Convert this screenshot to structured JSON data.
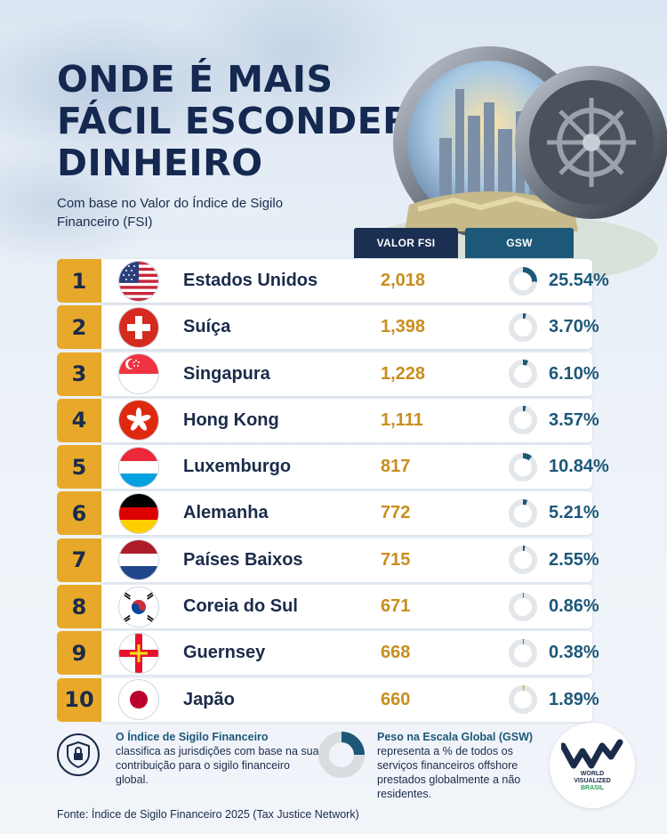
{
  "title": "ONDE É MAIS FÁCIL ESCONDER DINHEIRO",
  "subtitle": "Com base no Valor do Índice de Sigilo Financeiro (FSI)",
  "columns": {
    "fsi": "VALOR FSI",
    "gsw": "GSW"
  },
  "rows": [
    {
      "rank": "1",
      "country": "Estados Unidos",
      "flag": "us-flag",
      "fsi": "2,018",
      "gsw": "25.54%",
      "gsw_fraction": 0.2554
    },
    {
      "rank": "2",
      "country": "Suíça",
      "flag": "switzerland-flag",
      "fsi": "1,398",
      "gsw": "3.70%",
      "gsw_fraction": 0.037
    },
    {
      "rank": "3",
      "country": "Singapura",
      "flag": "singapore-flag",
      "fsi": "1,228",
      "gsw": "6.10%",
      "gsw_fraction": 0.061
    },
    {
      "rank": "4",
      "country": "Hong Kong",
      "flag": "hong-kong-flag",
      "fsi": "1,111",
      "gsw": "3.57%",
      "gsw_fraction": 0.0357
    },
    {
      "rank": "5",
      "country": "Luxemburgo",
      "flag": "luxembourg-flag",
      "fsi": "817",
      "gsw": "10.84%",
      "gsw_fraction": 0.1084
    },
    {
      "rank": "6",
      "country": "Alemanha",
      "flag": "germany-flag",
      "fsi": "772",
      "gsw": "5.21%",
      "gsw_fraction": 0.0521
    },
    {
      "rank": "7",
      "country": "Países Baixos",
      "flag": "netherlands-flag",
      "fsi": "715",
      "gsw": "2.55%",
      "gsw_fraction": 0.0255
    },
    {
      "rank": "8",
      "country": "Coreia do Sul",
      "flag": "south-korea-flag",
      "fsi": "671",
      "gsw": "0.86%",
      "gsw_fraction": 0.0086
    },
    {
      "rank": "9",
      "country": "Guernsey",
      "flag": "guernsey-flag",
      "fsi": "668",
      "gsw": "0.38%",
      "gsw_fraction": 0.0038
    },
    {
      "rank": "10",
      "country": "Japão",
      "flag": "japan-flag",
      "fsi": "660",
      "gsw": "1.89%",
      "gsw_fraction": 0.0189
    }
  ],
  "footer": {
    "fsi_title": "O Índice de Sigilo Financeiro",
    "fsi_text": "classifica as jurisdições com base na sua contribuição para o sigilo financeiro global.",
    "gsw_title": "Peso na Escala Global (GSW)",
    "gsw_text": "representa a % de todos os serviços financeiros offshore prestados globalmente a não residentes.",
    "logo_line1": "WORLD",
    "logo_line2": "VISUALIZED",
    "logo_line3": "BRASIL",
    "source": "Fonte: Índice de Sigilo Financeiro 2025 (Tax Justice Network)"
  },
  "colors": {
    "rank_bg": "#e8a92a",
    "fsi_value": "#c98e1e",
    "gsw_value": "#1d5878",
    "donut_track": "#e3e6ea",
    "donut_fill": "#1d5878",
    "donut_fill_last": "#e8a92a",
    "header_fsi": "#1a2f52",
    "header_gsw": "#1d5878"
  }
}
